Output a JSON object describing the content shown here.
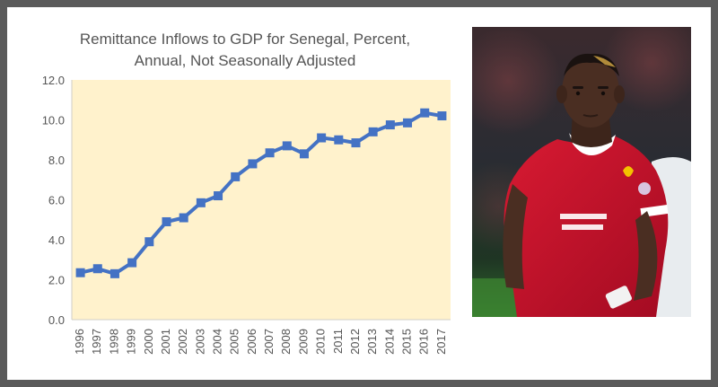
{
  "chart_data": {
    "type": "line",
    "title_line1": "Remittance Inflows to GDP for Senegal, Percent,",
    "title_line2": "Annual, Not Seasonally Adjusted",
    "xlabel": "",
    "ylabel": "",
    "ylim": [
      0,
      12
    ],
    "yticks": [
      "0.0",
      "2.0",
      "4.0",
      "6.0",
      "8.0",
      "10.0",
      "12.0"
    ],
    "grid": false,
    "categories": [
      "1996",
      "1997",
      "1998",
      "1999",
      "2000",
      "2001",
      "2002",
      "2003",
      "2004",
      "2005",
      "2006",
      "2007",
      "2008",
      "2009",
      "2010",
      "2011",
      "2012",
      "2013",
      "2014",
      "2015",
      "2016",
      "2017"
    ],
    "values": [
      2.35,
      2.55,
      2.3,
      2.85,
      3.9,
      4.9,
      5.1,
      5.85,
      6.2,
      7.15,
      7.8,
      8.35,
      8.7,
      8.3,
      9.1,
      9.0,
      8.85,
      9.4,
      9.75,
      9.85,
      10.35,
      10.2
    ],
    "colors": {
      "line": "#4472c4",
      "plot_bg": "#fff2cc",
      "axis": "#d0cfc8",
      "text": "#555555"
    }
  },
  "photo": {
    "icon": "footballer-photo",
    "colors": {
      "shirt": "#c8102e",
      "background": "#2b2f36",
      "skin": "#4a2e22"
    }
  }
}
